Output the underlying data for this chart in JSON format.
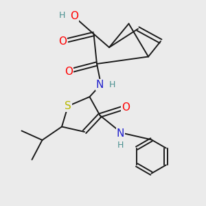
{
  "bg_color": "#ebebeb",
  "bond_color": "#1a1a1a",
  "bond_width": 1.4,
  "atom_colors": {
    "O": "#ff0000",
    "N": "#2020cc",
    "S": "#b8b800",
    "H": "#4a9090",
    "C": "#1a1a1a"
  },
  "font_size_atom": 11,
  "font_size_H": 9
}
